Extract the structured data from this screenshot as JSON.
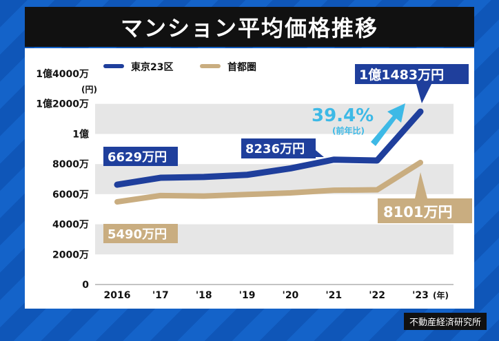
{
  "title": "マンション平均価格推移",
  "source": "不動産経済研究所",
  "chart_data": {
    "type": "line",
    "title": "マンション平均価格推移",
    "categories": [
      "2016",
      "'17",
      "'18",
      "'19",
      "'20",
      "'21",
      "'22",
      "'23"
    ],
    "xunit": "(年)",
    "yunit": "(円)",
    "ylim": [
      0,
      14000
    ],
    "yticks": [
      {
        "value": 0,
        "label": "0"
      },
      {
        "value": 2000,
        "label": "2000万"
      },
      {
        "value": 4000,
        "label": "4000万"
      },
      {
        "value": 6000,
        "label": "6000万"
      },
      {
        "value": 8000,
        "label": "8000万"
      },
      {
        "value": 10000,
        "label": "1億"
      },
      {
        "value": 12000,
        "label": "1億2000万"
      },
      {
        "value": 14000,
        "label": "1億4000万"
      }
    ],
    "series": [
      {
        "name": "東京23区",
        "color": "#1f3f9c",
        "values": [
          6629,
          7089,
          7142,
          7286,
          7712,
          8293,
          8236,
          11483
        ]
      },
      {
        "name": "首都圏",
        "color": "#c9ad80",
        "values": [
          5490,
          5908,
          5871,
          5980,
          6083,
          6260,
          6288,
          8101
        ]
      }
    ],
    "annotations": {
      "tokyo_start": "6629万円",
      "tokyo_2022": "8236万円",
      "tokyo_2023": "1億1483万円",
      "metro_start": "5490万円",
      "metro_2023": "8101万円",
      "growth_pct": "39.4%",
      "growth_note": "(前年比)"
    }
  }
}
